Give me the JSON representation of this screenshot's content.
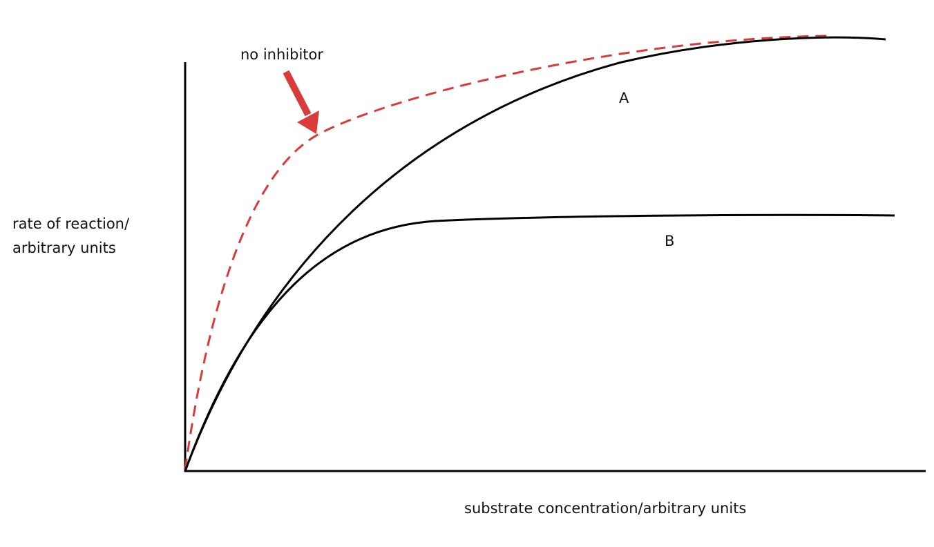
{
  "annotation": "no inhibitor",
  "curve_labels": [
    "A",
    "B"
  ],
  "y_axis_label": [
    "rate of reaction/",
    "arbitrary units"
  ],
  "x_axis_label": "substrate concentration/arbitrary units"
}
